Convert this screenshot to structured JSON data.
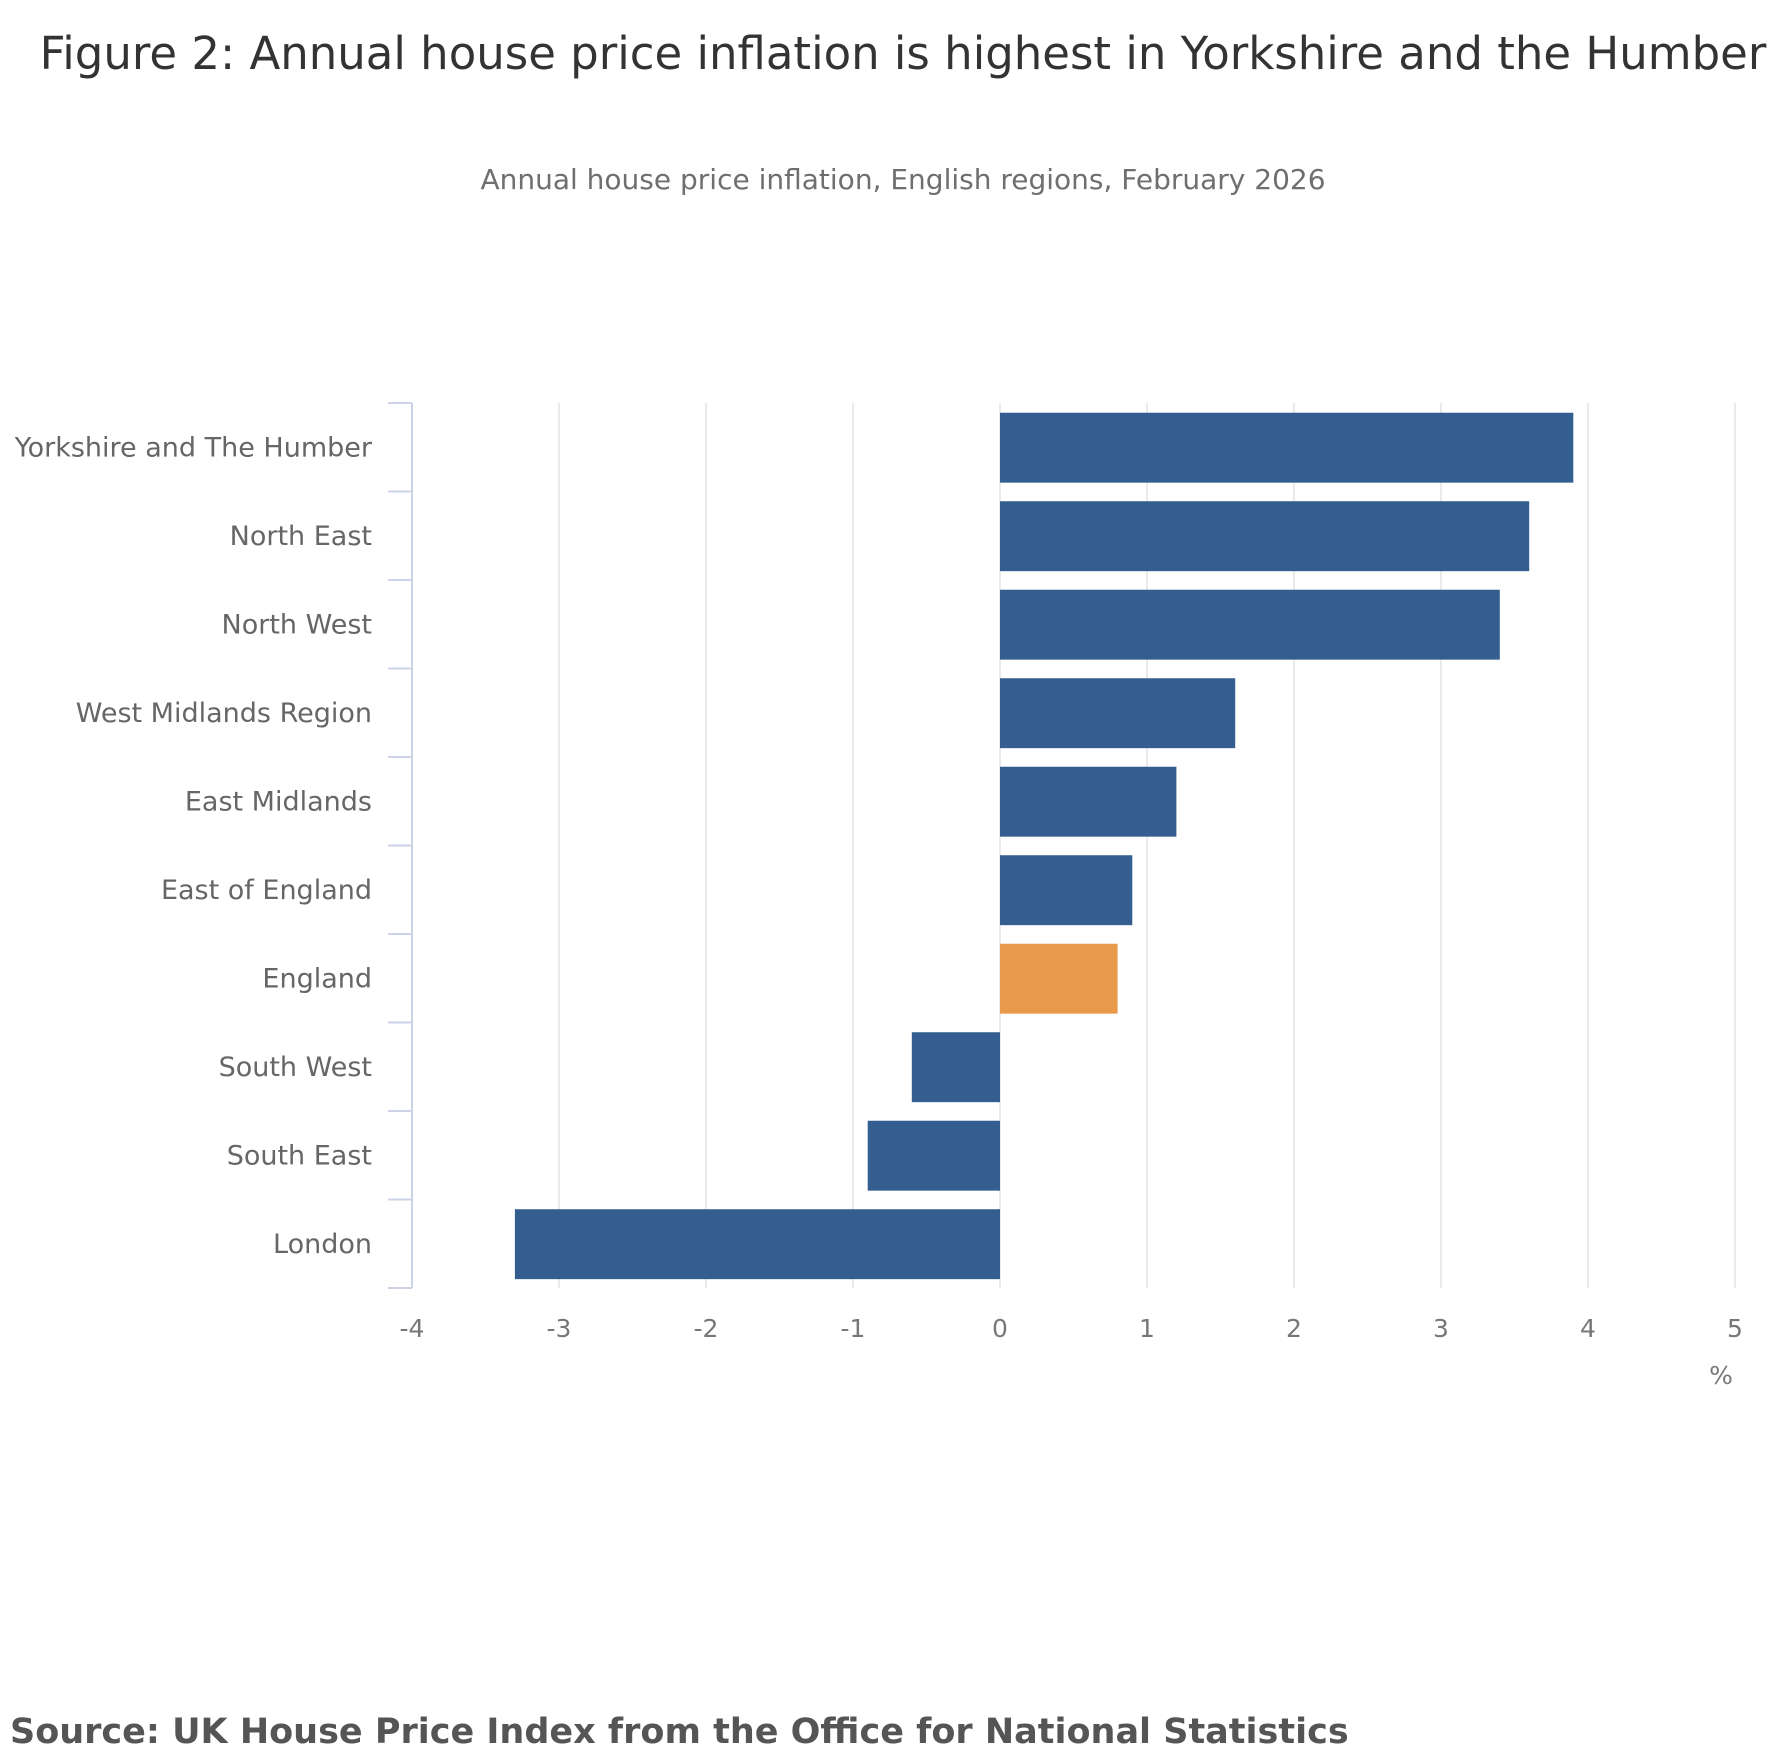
{
  "chart_data": {
    "type": "bar",
    "orientation": "horizontal",
    "title": "Figure 2: Annual house price inflation is highest in Yorkshire and the Humber",
    "subtitle": "Annual house price inflation, English regions, February 2026",
    "categories": [
      "Yorkshire and The Humber",
      "North East",
      "North West",
      "West Midlands Region",
      "East Midlands",
      "East of England",
      "England",
      "South West",
      "South East",
      "London"
    ],
    "values": [
      3.9,
      3.6,
      3.4,
      1.6,
      1.2,
      0.9,
      0.8,
      -0.6,
      -0.9,
      -3.3
    ],
    "highlight": "England",
    "xlabel": "%",
    "ylabel": "",
    "xlim": [
      -4,
      5
    ],
    "xticks": [
      "-4",
      "-3",
      "-2",
      "-1",
      "0",
      "1",
      "2",
      "3",
      "4",
      "5"
    ],
    "grid": true,
    "colors": {
      "bar": "#335e8f",
      "highlight": "#e8994a",
      "grid": "#e3e3e3",
      "axis": "#ccd3e6"
    }
  },
  "source": "Source: UK House Price Index from the Office for National Statistics"
}
